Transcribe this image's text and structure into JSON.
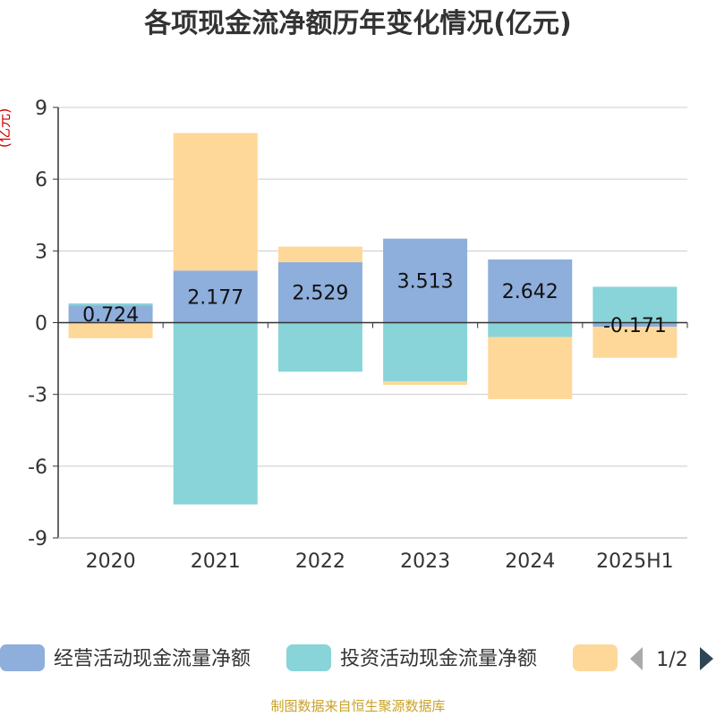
{
  "chart_data": {
    "type": "bar",
    "stacked": true,
    "title": "各项现金流净额历年变化情况(亿元)",
    "ylabel": "(亿元)",
    "categories": [
      "2020",
      "2021",
      "2022",
      "2023",
      "2024",
      "2025H1"
    ],
    "ylim": [
      -9,
      9
    ],
    "yticks": [
      9,
      6,
      3,
      0,
      -3,
      -6,
      -9
    ],
    "ytick_labels": [
      "9",
      "6",
      "3",
      "0",
      "-3",
      "-6",
      "-9"
    ],
    "grid": true,
    "legend": "bottom",
    "series": [
      {
        "name": "经营活动现金流量净额",
        "color": "#8eaedb",
        "values": [
          0.724,
          2.177,
          2.529,
          3.513,
          2.642,
          -0.171
        ],
        "data_labels": [
          "0.724",
          "2.177",
          "2.529",
          "3.513",
          "2.642",
          "-0.171"
        ]
      },
      {
        "name": "投资活动现金流量净额",
        "color": "#88d4d8",
        "values": [
          0.08,
          -7.6,
          -2.05,
          -2.45,
          -0.6,
          1.5
        ]
      },
      {
        "name": "",
        "color": "#fed899",
        "values": [
          -0.65,
          5.75,
          0.65,
          -0.15,
          -2.6,
          -1.3
        ]
      }
    ],
    "pager": "1/2"
  },
  "source": "制图数据来自恒生聚源数据库",
  "colors": {
    "axis": "#333333",
    "grid": "#cccccc",
    "pager_prev": "#aaaaaa",
    "pager_next": "#2f4554"
  }
}
